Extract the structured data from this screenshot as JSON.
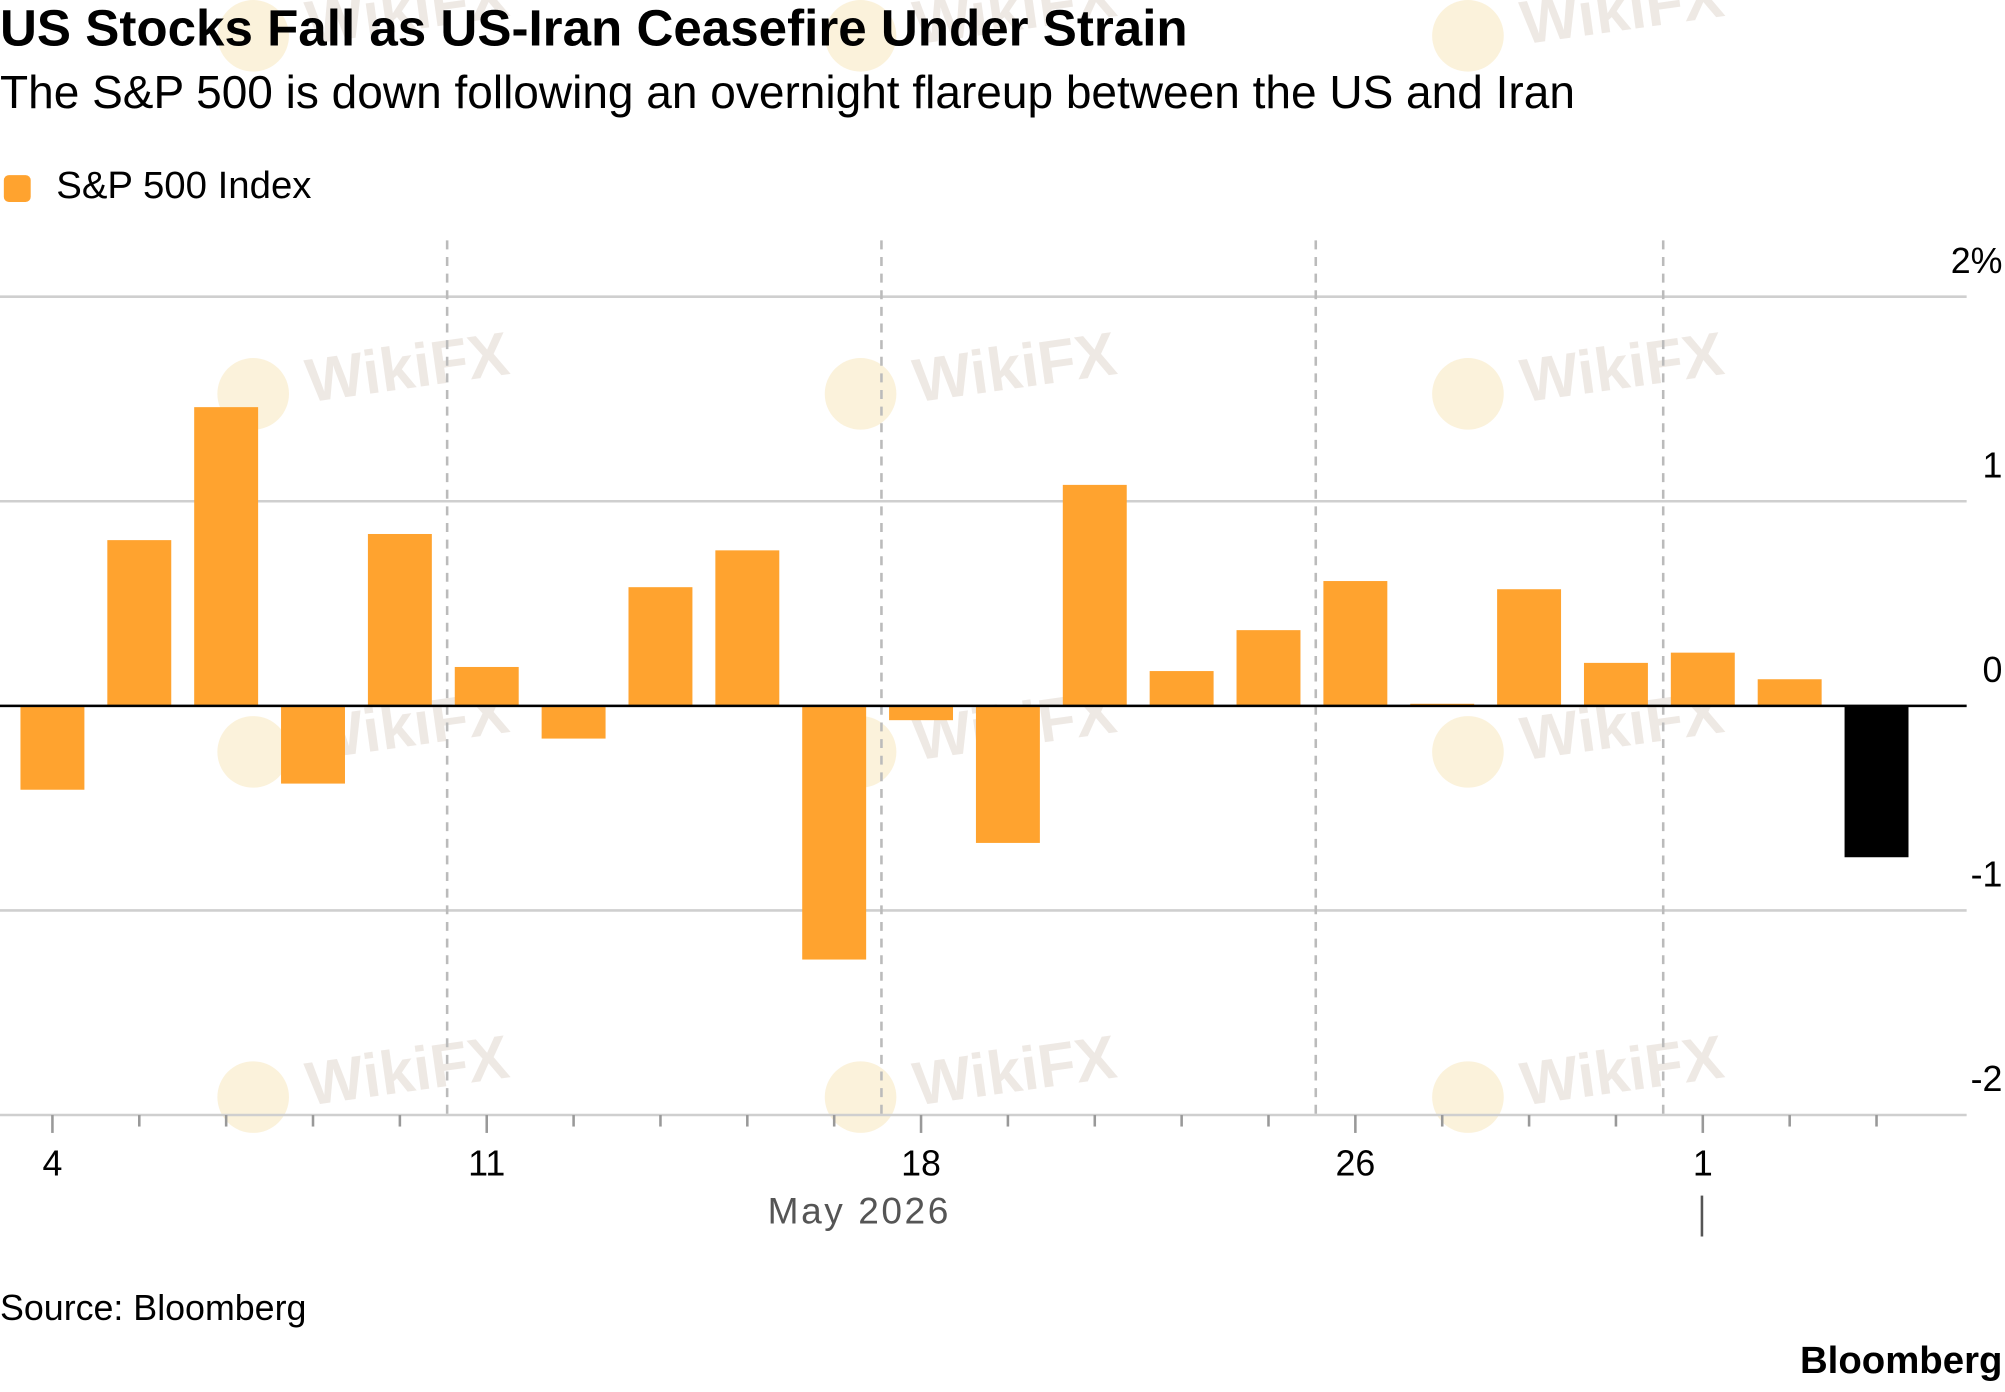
{
  "chart_data": {
    "type": "bar",
    "title": "US Stocks Fall as US-Iran Ceasefire Under Strain",
    "subtitle": "The S&P 500 is down following an overnight flareup between the US and Iran",
    "x_label": "May 2026",
    "categories": [
      "4",
      null,
      null,
      null,
      null,
      "11",
      null,
      null,
      null,
      null,
      "18",
      null,
      null,
      null,
      null,
      "26",
      null,
      null,
      null,
      "1",
      null,
      null
    ],
    "series": [
      {
        "name": "S&P 500 Index",
        "color": "#ffa32f",
        "values": [
          -0.41,
          0.81,
          1.46,
          -0.38,
          0.84,
          0.19,
          -0.16,
          0.58,
          0.76,
          -1.24,
          -0.07,
          -0.67,
          1.08,
          0.17,
          0.37,
          0.61,
          0.01,
          0.57,
          0.21,
          0.26,
          0.13,
          -0.74
        ],
        "colors": [
          "#ffa32f",
          "#ffa32f",
          "#ffa32f",
          "#ffa32f",
          "#ffa32f",
          "#ffa32f",
          "#ffa32f",
          "#ffa32f",
          "#ffa32f",
          "#ffa32f",
          "#ffa32f",
          "#ffa32f",
          "#ffa32f",
          "#ffa32f",
          "#ffa32f",
          "#ffa32f",
          "#ffa32f",
          "#ffa32f",
          "#ffa32f",
          "#ffa32f",
          "#ffa32f",
          "#000000"
        ]
      }
    ],
    "ylim": [
      -2,
      2
    ],
    "yticks": [
      -2,
      -1,
      0,
      1,
      {
        "value": 2,
        "label": "2%"
      }
    ],
    "grid": true,
    "source": "Source: Bloomberg",
    "logo": "Bloomberg",
    "watermark": "WikiFX"
  }
}
